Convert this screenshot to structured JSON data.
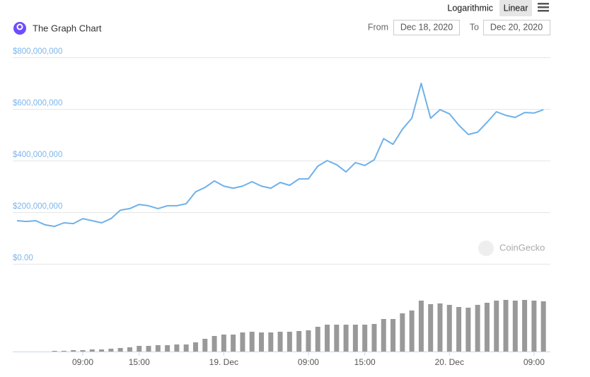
{
  "chart_data": {
    "type": "line",
    "title": "The Graph Chart",
    "scale_options": [
      "Logarithmic",
      "Linear"
    ],
    "range_labels": [
      "From",
      "To"
    ],
    "range": [
      "Dec 18, 2020",
      "Dec 20, 2020"
    ],
    "watermark": "CoinGecko",
    "x": [
      2,
      3,
      4,
      5,
      6,
      7,
      8,
      9,
      10,
      11,
      12,
      13,
      14,
      15,
      16,
      17,
      18,
      19,
      20,
      21,
      22,
      23,
      24,
      25,
      26,
      27,
      28,
      29,
      30,
      31,
      32,
      33,
      34,
      35,
      36,
      37,
      38,
      39,
      40,
      41,
      42,
      43,
      44,
      45,
      46,
      47,
      48,
      49,
      50,
      51,
      52,
      53,
      54,
      55,
      56,
      57,
      58
    ],
    "values": [
      167000000,
      164000000,
      167000000,
      151000000,
      145000000,
      159000000,
      156000000,
      175000000,
      167000000,
      159000000,
      175000000,
      208000000,
      214000000,
      230000000,
      225000000,
      214000000,
      225000000,
      225000000,
      233000000,
      279000000,
      296000000,
      321000000,
      301000000,
      293000000,
      301000000,
      318000000,
      301000000,
      293000000,
      315000000,
      304000000,
      329000000,
      329000000,
      378000000,
      400000000,
      384000000,
      356000000,
      392000000,
      381000000,
      403000000,
      485000000,
      463000000,
      521000000,
      564000000,
      699000000,
      564000000,
      597000000,
      581000000,
      537000000,
      501000000,
      510000000,
      548000000,
      589000000,
      575000000,
      567000000,
      586000000,
      584000000,
      597000000
    ],
    "color": "#6fb1ea",
    "volumes": [
      0,
      0,
      0,
      0,
      1,
      1,
      2,
      2,
      3,
      3,
      4,
      5,
      6,
      8,
      8,
      9,
      9,
      10,
      10,
      13,
      18,
      22,
      24,
      24,
      27,
      28,
      27,
      27,
      28,
      28,
      29,
      30,
      35,
      38,
      38,
      38,
      38,
      38,
      39,
      46,
      46,
      54,
      58,
      72,
      67,
      68,
      66,
      63,
      62,
      66,
      69,
      72,
      73,
      72,
      73,
      72,
      71
    ],
    "volume_color": "#999999",
    "volume_ylim": [
      0,
      100
    ],
    "xlim": [
      1.55,
      58.74
    ],
    "xticks": [
      {
        "value": 9,
        "label": "09:00"
      },
      {
        "value": 15,
        "label": "15:00"
      },
      {
        "value": 24,
        "label": "19. Dec"
      },
      {
        "value": 33,
        "label": "09:00"
      },
      {
        "value": 39,
        "label": "15:00"
      },
      {
        "value": 48,
        "label": "20. Dec"
      },
      {
        "value": 57,
        "label": "09:00"
      }
    ],
    "ylim": [
      0,
      800000000
    ],
    "yticks": [
      {
        "value": 0,
        "label": "$0.00"
      },
      {
        "value": 200000000,
        "label": "$200,000,000"
      },
      {
        "value": 400000000,
        "label": "$400,000,000"
      },
      {
        "value": 600000000,
        "label": "$600,000,000"
      },
      {
        "value": 800000000,
        "label": "$800,000,000"
      }
    ],
    "grid": true
  }
}
